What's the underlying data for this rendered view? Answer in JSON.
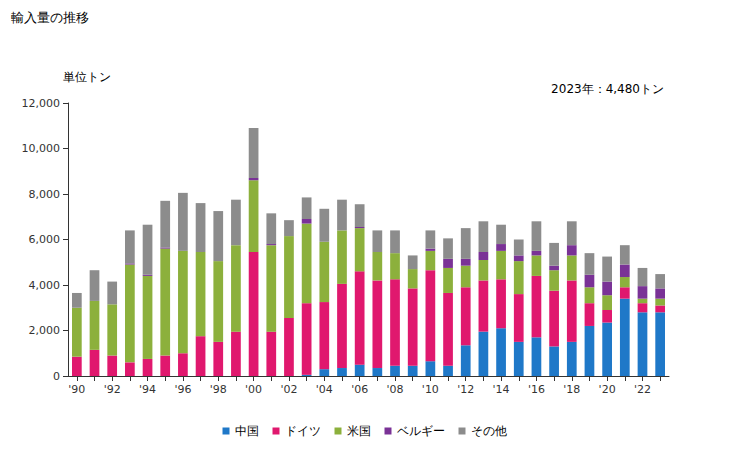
{
  "chart_data": {
    "type": "bar",
    "stacked": true,
    "title": "輸入量の推移",
    "unit_label": "単位トン",
    "annotation": "2023年：4,480トン",
    "legend": "bottom",
    "grid": false,
    "categories": [
      "'90",
      null,
      "'92",
      null,
      "'94",
      null,
      "'96",
      null,
      "'98",
      null,
      "'00",
      null,
      "'02",
      null,
      "'04",
      null,
      "'06",
      null,
      "'08",
      null,
      "'10",
      null,
      "'12",
      null,
      "'14",
      null,
      "'16",
      null,
      "'18",
      null,
      "'20",
      null,
      "'22",
      null
    ],
    "ylim": [
      0,
      12000
    ],
    "yticks": [
      0,
      {
        "value": 2000,
        "label": "2,000"
      },
      {
        "value": 4000,
        "label": "4,000"
      },
      {
        "value": 6000,
        "label": "6,000"
      },
      {
        "value": 8000,
        "label": "8,000"
      },
      {
        "value": 10000,
        "label": "10,000"
      },
      {
        "value": 12000,
        "label": "12,000"
      }
    ],
    "series": [
      {
        "name": "中国",
        "color": "#1f78c8",
        "values": [
          0,
          0,
          0,
          0,
          0,
          0,
          0,
          0,
          0,
          0,
          0,
          0,
          0,
          50,
          300,
          350,
          500,
          350,
          450,
          450,
          650,
          450,
          1350,
          1950,
          2100,
          1500,
          1700,
          1300,
          1500,
          2200,
          2350,
          3400,
          2800,
          2800
        ]
      },
      {
        "name": "ドイツ",
        "color": "#e0186e",
        "values": [
          850,
          1150,
          900,
          600,
          750,
          900,
          1000,
          1750,
          1500,
          1950,
          5450,
          1950,
          2550,
          3150,
          2950,
          3700,
          4100,
          3850,
          3800,
          3400,
          4000,
          3200,
          2550,
          2250,
          2150,
          2100,
          2700,
          2450,
          2700,
          1000,
          550,
          500,
          400,
          300
        ]
      },
      {
        "name": "米国",
        "color": "#8cb03c",
        "values": [
          2150,
          2150,
          2250,
          4300,
          3650,
          4700,
          4500,
          3700,
          3550,
          3800,
          3150,
          3800,
          3600,
          3500,
          2650,
          2350,
          1900,
          1250,
          1150,
          850,
          850,
          1100,
          950,
          900,
          1250,
          1450,
          900,
          900,
          1100,
          700,
          650,
          450,
          200,
          300
        ]
      },
      {
        "name": "ベルギー",
        "color": "#7a3296",
        "values": [
          0,
          0,
          0,
          50,
          50,
          50,
          0,
          0,
          0,
          0,
          100,
          50,
          0,
          200,
          0,
          0,
          50,
          0,
          0,
          0,
          100,
          400,
          300,
          350,
          300,
          250,
          200,
          200,
          450,
          550,
          600,
          550,
          550,
          450
        ]
      },
      {
        "name": "その他",
        "color": "#8c8c8c",
        "values": [
          650,
          1350,
          1000,
          1450,
          2200,
          2050,
          2550,
          2150,
          2200,
          2000,
          2200,
          1350,
          700,
          950,
          1450,
          1350,
          1000,
          950,
          1000,
          600,
          800,
          900,
          1350,
          1350,
          850,
          700,
          1300,
          1000,
          1050,
          950,
          1100,
          850,
          800,
          630
        ]
      }
    ]
  }
}
